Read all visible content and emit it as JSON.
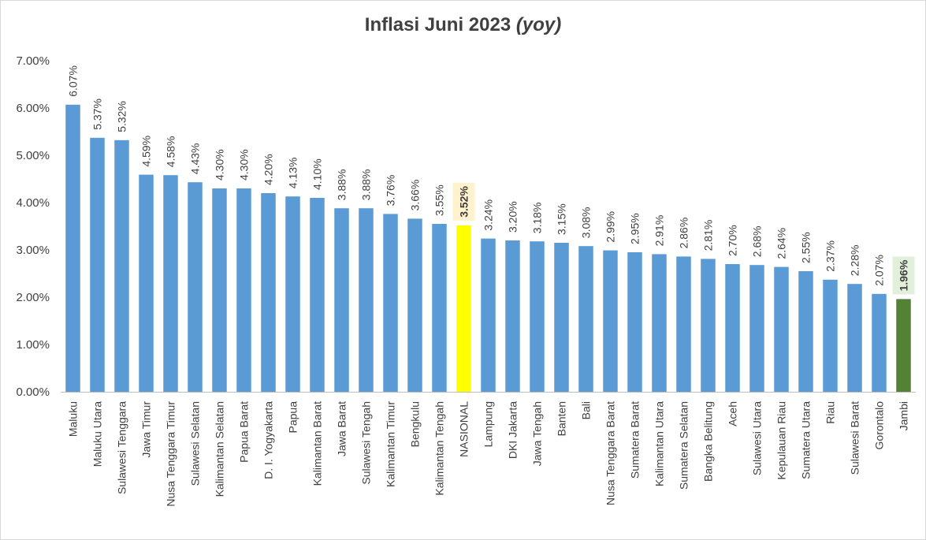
{
  "chart_data": {
    "type": "bar",
    "title": "Inflasi Juni 2023",
    "title_suffix": "(yoy)",
    "xlabel": "",
    "ylabel": "",
    "ylim": [
      0,
      7
    ],
    "y_ticks": [
      "0.00%",
      "1.00%",
      "2.00%",
      "3.00%",
      "4.00%",
      "5.00%",
      "6.00%",
      "7.00%"
    ],
    "grid": false,
    "categories": [
      "Maluku",
      "Maluku Utara",
      "Sulawesi Tenggara",
      "Jawa Timur",
      "Nusa Tenggara Timur",
      "Sulawesi Selatan",
      "Kalimantan Selatan",
      "Papua Barat",
      "D. I. Yogyakarta",
      "Papua",
      "Kalimantan Barat",
      "Jawa Barat",
      "Sulawesi Tengah",
      "Kalimantan Timur",
      "Bengkulu",
      "Kalimantan Tengah",
      "NASIONAL",
      "Lampung",
      "DKI Jakarta",
      "Jawa Tengah",
      "Banten",
      "Bali",
      "Nusa Tenggara Barat",
      "Sumatera Barat",
      "Kalimantan Utara",
      "Sumatera Selatan",
      "Bangka Belitung",
      "Aceh",
      "Sulawesi Utara",
      "Kepulauan Riau",
      "Sumatera Utara",
      "Riau",
      "Sulawesi Barat",
      "Gorontalo",
      "Jambi"
    ],
    "values": [
      6.07,
      5.37,
      5.32,
      4.59,
      4.58,
      4.43,
      4.3,
      4.3,
      4.2,
      4.13,
      4.1,
      3.88,
      3.88,
      3.76,
      3.66,
      3.55,
      3.52,
      3.24,
      3.2,
      3.18,
      3.15,
      3.08,
      2.99,
      2.95,
      2.91,
      2.86,
      2.81,
      2.7,
      2.68,
      2.64,
      2.55,
      2.37,
      2.28,
      2.07,
      1.96
    ],
    "value_labels": [
      "6.07%",
      "5.37%",
      "5.32%",
      "4.59%",
      "4.58%",
      "4.43%",
      "4.30%",
      "4.30%",
      "4.20%",
      "4.13%",
      "4.10%",
      "3.88%",
      "3.88%",
      "3.76%",
      "3.66%",
      "3.55%",
      "3.52%",
      "3.24%",
      "3.20%",
      "3.18%",
      "3.15%",
      "3.08%",
      "2.99%",
      "2.95%",
      "2.91%",
      "2.86%",
      "2.81%",
      "2.70%",
      "2.68%",
      "2.64%",
      "2.55%",
      "2.37%",
      "2.28%",
      "2.07%",
      "1.96%"
    ],
    "colors": {
      "default_bar": "#5b9bd5",
      "axis": "#bfbfbf",
      "text": "#404040"
    },
    "highlights": [
      {
        "category": "NASIONAL",
        "bar_color": "#ffff00",
        "label_bg": "#fff2cc",
        "bold": true
      },
      {
        "category": "Jambi",
        "bar_color": "#548235",
        "label_bg": "#e2efda",
        "bold": true
      }
    ]
  }
}
